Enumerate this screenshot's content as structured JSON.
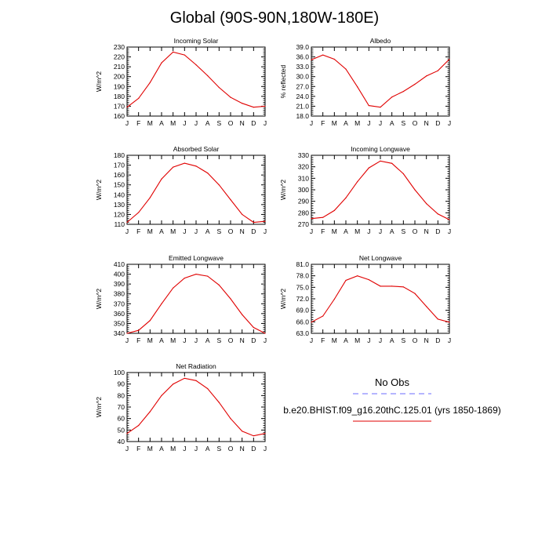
{
  "page": {
    "title": "Global (90S-90N,180W-180E)"
  },
  "legend": {
    "no_obs_label": "No Obs",
    "run_label": "b.e20.BHIST.f09_g16.20thC.125.01 (yrs 1850-1869)",
    "obs_color": "#6b6bff",
    "model_color": "#e00000"
  },
  "colors": {
    "model_line": "#e00000",
    "axes": "#000000"
  },
  "chart_data": [
    {
      "type": "line",
      "title": "Incoming Solar",
      "ylabel": "W/m^2",
      "categories": [
        "J",
        "F",
        "M",
        "A",
        "M",
        "J",
        "J",
        "A",
        "S",
        "O",
        "N",
        "D",
        "J"
      ],
      "ylim": [
        160,
        230
      ],
      "yticks": [
        160,
        170,
        180,
        190,
        200,
        210,
        220,
        230
      ],
      "yticklabels": [
        "160",
        "170",
        "180",
        "190",
        "200",
        "210",
        "220",
        "230"
      ],
      "series": [
        {
          "values": [
            169,
            178,
            194,
            214,
            225,
            222,
            212,
            201,
            189,
            179,
            173,
            169,
            170
          ]
        }
      ]
    },
    {
      "type": "line",
      "title": "Albedo",
      "ylabel": "% reflected",
      "categories": [
        "J",
        "F",
        "M",
        "A",
        "M",
        "J",
        "J",
        "A",
        "S",
        "O",
        "N",
        "D",
        "J"
      ],
      "ylim": [
        18,
        39
      ],
      "yticks": [
        18,
        21,
        24,
        27,
        30,
        33,
        36,
        39
      ],
      "yticklabels": [
        "18.0",
        "21.0",
        "24.0",
        "27.0",
        "30.0",
        "33.0",
        "36.0",
        "39.0"
      ],
      "series": [
        {
          "values": [
            35.1,
            36.6,
            35.3,
            32.3,
            26.9,
            21.2,
            20.7,
            23.8,
            25.5,
            27.7,
            30.2,
            31.8,
            35.3
          ]
        }
      ]
    },
    {
      "type": "line",
      "title": "Absorbed Solar",
      "ylabel": "W/m^2",
      "categories": [
        "J",
        "F",
        "M",
        "A",
        "M",
        "J",
        "J",
        "A",
        "S",
        "O",
        "N",
        "D",
        "J"
      ],
      "ylim": [
        110,
        180
      ],
      "yticks": [
        110,
        120,
        130,
        140,
        150,
        160,
        170,
        180
      ],
      "yticklabels": [
        "110",
        "120",
        "130",
        "140",
        "150",
        "160",
        "170",
        "180"
      ],
      "series": [
        {
          "values": [
            112,
            122,
            137,
            156,
            168,
            172,
            169,
            162,
            150,
            135,
            120,
            112,
            113
          ]
        }
      ]
    },
    {
      "type": "line",
      "title": "Incoming Longwave",
      "ylabel": "W/m^2",
      "categories": [
        "J",
        "F",
        "M",
        "A",
        "M",
        "J",
        "J",
        "A",
        "S",
        "O",
        "N",
        "D",
        "J"
      ],
      "ylim": [
        270,
        330
      ],
      "yticks": [
        270,
        280,
        290,
        300,
        310,
        320,
        330
      ],
      "yticklabels": [
        "270",
        "280",
        "290",
        "300",
        "310",
        "320",
        "330"
      ],
      "series": [
        {
          "values": [
            275,
            276,
            282,
            293,
            307,
            319,
            325,
            323,
            314,
            300,
            288,
            279,
            274
          ]
        }
      ]
    },
    {
      "type": "line",
      "title": "Emitted Longwave",
      "ylabel": "W/m^2",
      "categories": [
        "J",
        "F",
        "M",
        "A",
        "M",
        "J",
        "J",
        "A",
        "S",
        "O",
        "N",
        "D",
        "J"
      ],
      "ylim": [
        340,
        410
      ],
      "yticks": [
        340,
        350,
        360,
        370,
        380,
        390,
        400,
        410
      ],
      "yticklabels": [
        "340",
        "350",
        "360",
        "370",
        "380",
        "390",
        "400",
        "410"
      ],
      "series": [
        {
          "values": [
            340,
            343,
            353,
            370,
            386,
            396,
            400,
            398,
            389,
            375,
            359,
            346,
            340
          ]
        }
      ]
    },
    {
      "type": "line",
      "title": "Net Longwave",
      "ylabel": "W/m^2",
      "categories": [
        "J",
        "F",
        "M",
        "A",
        "M",
        "J",
        "J",
        "A",
        "S",
        "O",
        "N",
        "D",
        "J"
      ],
      "ylim": [
        63,
        81
      ],
      "yticks": [
        63,
        66,
        69,
        72,
        75,
        78,
        81
      ],
      "yticklabels": [
        "63.0",
        "66.0",
        "69.0",
        "72.0",
        "75.0",
        "78.0",
        "81.0"
      ],
      "series": [
        {
          "values": [
            65.9,
            67.5,
            71.9,
            76.8,
            78.0,
            77.0,
            75.3,
            75.3,
            75.1,
            73.4,
            70.0,
            66.7,
            65.9
          ]
        }
      ]
    },
    {
      "type": "line",
      "title": "Net Radiation",
      "ylabel": "W/m^2",
      "categories": [
        "J",
        "F",
        "M",
        "A",
        "M",
        "J",
        "J",
        "A",
        "S",
        "O",
        "N",
        "D",
        "J"
      ],
      "ylim": [
        40,
        100
      ],
      "yticks": [
        40,
        50,
        60,
        70,
        80,
        90,
        100
      ],
      "yticklabels": [
        "40",
        "50",
        "60",
        "70",
        "80",
        "90",
        "100"
      ],
      "series": [
        {
          "values": [
            47,
            54,
            66,
            80,
            90,
            95,
            93,
            86,
            74,
            60,
            49,
            45,
            47
          ]
        }
      ]
    }
  ]
}
